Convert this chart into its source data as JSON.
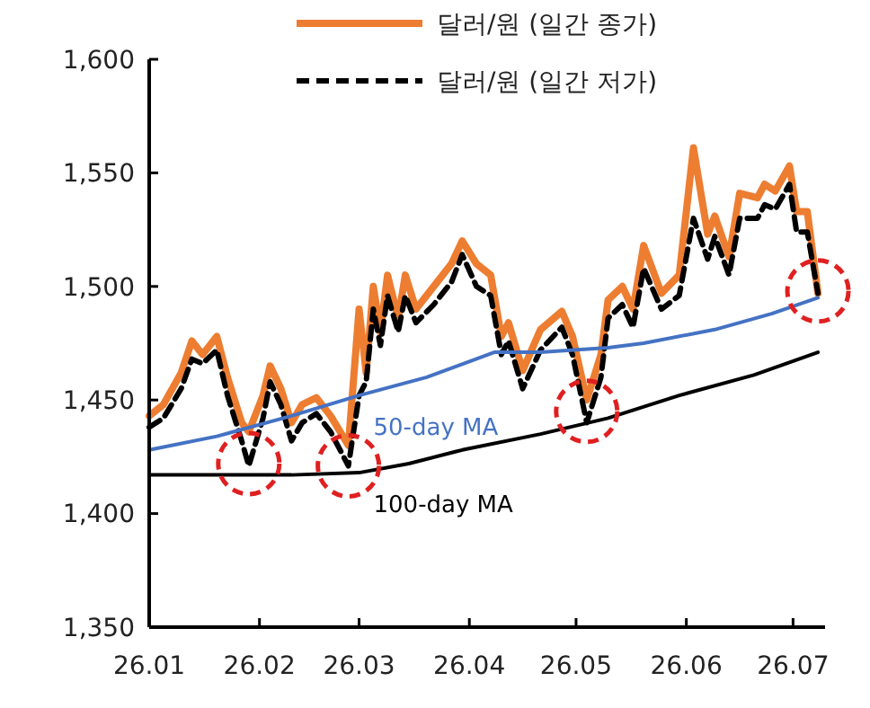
{
  "chart_data": {
    "type": "line",
    "legend": "top",
    "marker": "none",
    "x": [
      "--01-01",
      "--01-05",
      "--01-10",
      "--01-13",
      "--01-16",
      "--01-20",
      "--01-23",
      "--01-27",
      "--01-29",
      "--02-02",
      "--02-04",
      "--02-07",
      "--02-10",
      "--02-13",
      "--02-17",
      "--02-21",
      "--02-26",
      "--03-01",
      "--03-03",
      "--03-05",
      "--03-07",
      "--03-09",
      "--03-12",
      "--03-14",
      "--03-17",
      "--03-22",
      "--03-27",
      "--03-30",
      "--04-03",
      "--04-07",
      "--04-10",
      "--04-12",
      "--04-16",
      "--04-21",
      "--04-27",
      "--04-30",
      "--05-04",
      "--05-08",
      "--05-10",
      "--05-14",
      "--05-17",
      "--05-20",
      "--05-25",
      "--05-30",
      "--06-03",
      "--06-07",
      "--06-09",
      "--06-13",
      "--06-16",
      "--06-21",
      "--06-23",
      "--06-26",
      "--06-30",
      "--07-02",
      "--07-05",
      "--07-08"
    ],
    "xlim": [
      "--01-01",
      "--07-10"
    ],
    "xticks": [
      {
        "value": "--01-01",
        "label": "26.01"
      },
      {
        "value": "--02-01",
        "label": "26.02"
      },
      {
        "value": "--03-01",
        "label": "26.03"
      },
      {
        "value": "--04-01",
        "label": "26.04"
      },
      {
        "value": "--05-01",
        "label": "26.05"
      },
      {
        "value": "--06-01",
        "label": "26.06"
      },
      {
        "value": "--07-01",
        "label": "26.07"
      }
    ],
    "ylim": [
      1350,
      1600
    ],
    "yticks": [
      {
        "value": 1350,
        "label": "1,350"
      },
      {
        "value": 1400,
        "label": "1,400"
      },
      {
        "value": 1450,
        "label": "1,450"
      },
      {
        "value": 1500,
        "label": "1,500"
      },
      {
        "value": 1550,
        "label": "1,550"
      },
      {
        "value": 1600,
        "label": "1,600"
      }
    ],
    "series": [
      {
        "name": "달러/원 (일간 종가)",
        "color": "#ed7d31",
        "line_style": "solid",
        "values": [
          1443,
          1448,
          1462,
          1476,
          1470,
          1478,
          1460,
          1440,
          1436,
          1452,
          1465,
          1455,
          1440,
          1448,
          1451,
          1443,
          1430,
          1490,
          1462,
          1500,
          1480,
          1505,
          1486,
          1505,
          1490,
          1500,
          1510,
          1520,
          1510,
          1505,
          1478,
          1484,
          1463,
          1481,
          1489,
          1478,
          1450,
          1470,
          1494,
          1500,
          1490,
          1518,
          1497,
          1505,
          1561,
          1523,
          1531,
          1513,
          1541,
          1539,
          1545,
          1542,
          1553,
          1533,
          1533,
          1497
        ]
      },
      {
        "name": "달러/원 (일간 저가)",
        "color": "#000000",
        "line_style": "dashed",
        "values": [
          1438,
          1442,
          1455,
          1468,
          1466,
          1472,
          1452,
          1432,
          1421,
          1442,
          1458,
          1448,
          1432,
          1440,
          1444,
          1436,
          1421,
          1452,
          1458,
          1490,
          1474,
          1496,
          1480,
          1496,
          1484,
          1492,
          1502,
          1514,
          1500,
          1496,
          1470,
          1476,
          1455,
          1472,
          1482,
          1470,
          1440,
          1460,
          1486,
          1492,
          1482,
          1508,
          1490,
          1496,
          1530,
          1512,
          1522,
          1505,
          1530,
          1530,
          1536,
          1534,
          1545,
          1524,
          1524,
          1497
        ]
      },
      {
        "name": "50-day MA",
        "color": "#4472c4",
        "line_style": "solid",
        "x": [
          "--01-01",
          "--01-20",
          "--02-10",
          "--03-01",
          "--03-20",
          "--04-08",
          "--04-21",
          "--05-10",
          "--05-20",
          "--06-09",
          "--06-25",
          "--07-08"
        ],
        "values": [
          1428,
          1434,
          1443,
          1452,
          1460,
          1471,
          1471,
          1473,
          1475,
          1481,
          1488,
          1495
        ]
      },
      {
        "name": "100-day MA",
        "color": "#000000",
        "line_style": "solid",
        "x": [
          "--01-01",
          "--01-20",
          "--02-10",
          "--03-01",
          "--03-15",
          "--03-30",
          "--04-21",
          "--05-10",
          "--05-30",
          "--06-20",
          "--07-08"
        ],
        "values": [
          1417,
          1417,
          1417,
          1418,
          1422,
          1428,
          1435,
          1442,
          1452,
          1461,
          1471
        ]
      },
      {
        "type": "scatter",
        "color": "#e02020",
        "marker": "circle",
        "x": [
          "--01-29",
          "--02-26",
          "--05-04",
          "--07-08"
        ],
        "values": [
          1422,
          1421,
          1445,
          1498
        ]
      }
    ]
  }
}
